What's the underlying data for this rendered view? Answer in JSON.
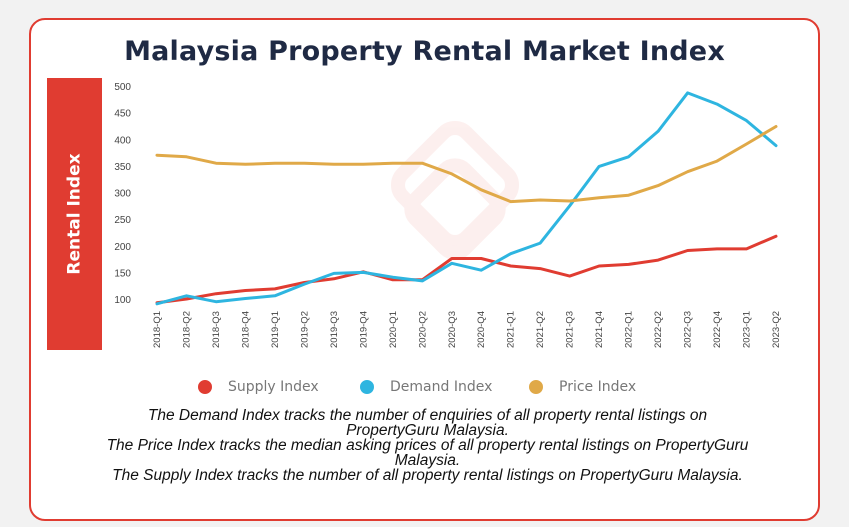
{
  "title": "Malaysia Property Rental Market Index",
  "ylabel": "Rental Index",
  "legend": [
    {
      "label": "Supply Index",
      "color": "#e03c31"
    },
    {
      "label": "Demand Index",
      "color": "#2eb5e0"
    },
    {
      "label": "Price Index",
      "color": "#e0a948"
    }
  ],
  "notes": [
    "The Demand Index tracks the number of enquiries of all property rental listings on PropertyGuru Malaysia.",
    "The Price Index tracks the median asking prices of all property rental listings on PropertyGuru Malaysia.",
    "The Supply Index tracks the number of all property rental listings on PropertyGuru Malaysia."
  ],
  "chart_data": {
    "type": "line",
    "title": "Malaysia Property Rental Market Index",
    "ylabel": "Rental Index",
    "xlabel": "",
    "ylim": [
      90,
      500
    ],
    "yticks": [
      100,
      150,
      200,
      250,
      300,
      350,
      400,
      450,
      500
    ],
    "grid": false,
    "legend_position": "bottom",
    "categories": [
      "2018-Q1",
      "2018-Q2",
      "2018-Q3",
      "2018-Q4",
      "2019-Q1",
      "2019-Q2",
      "2019-Q3",
      "2019-Q4",
      "2020-Q1",
      "2020-Q2",
      "2020-Q3",
      "2020-Q4",
      "2021-Q1",
      "2021-Q2",
      "2021-Q3",
      "2021-Q4",
      "2022-Q1",
      "2022-Q2",
      "2022-Q3",
      "2022-Q4",
      "2023-Q1",
      "2023-Q2"
    ],
    "series": [
      {
        "name": "Supply Index",
        "color": "#e03c31",
        "values": [
          93,
          100,
          110,
          116,
          119,
          131,
          138,
          151,
          136,
          136,
          176,
          176,
          162,
          157,
          143,
          162,
          165,
          173,
          191,
          194,
          194,
          218
        ]
      },
      {
        "name": "Demand Index",
        "color": "#2eb5e0",
        "values": [
          91,
          106,
          95,
          101,
          106,
          128,
          148,
          150,
          141,
          134,
          167,
          154,
          185,
          205,
          275,
          349,
          367,
          415,
          487,
          466,
          435,
          388
        ]
      },
      {
        "name": "Price Index",
        "color": "#e0a948",
        "values": [
          370,
          367,
          355,
          353,
          355,
          355,
          353,
          353,
          355,
          355,
          335,
          305,
          283,
          286,
          284,
          290,
          295,
          313,
          339,
          359,
          391,
          424
        ]
      }
    ]
  }
}
